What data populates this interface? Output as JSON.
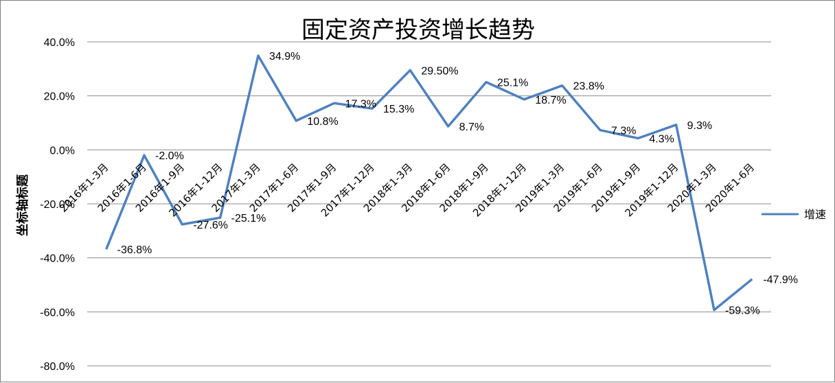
{
  "chart_data": {
    "type": "line",
    "title": "固定资产投资增长趋势",
    "ylabel": "坐标轴标题",
    "xlabel": "",
    "ylim": [
      -80,
      40
    ],
    "yticks": [
      40,
      20,
      0,
      -20,
      -40,
      -60,
      -80
    ],
    "ytick_labels": [
      "40.0%",
      "20.0%",
      "0.0%",
      "-20.0%",
      "-40.0%",
      "-60.0%",
      "-80.0%"
    ],
    "grid": true,
    "legend_position": "right",
    "categories": [
      "2016年1-3月",
      "2016年1-6月",
      "2016年1-9月",
      "2016年1-12月",
      "2017年1-3月",
      "2017年1-6月",
      "2017年1-9月",
      "2017年1-12月",
      "2018年1-3月",
      "2018年1-6月",
      "2018年1-9月",
      "2018年1-12月",
      "2019年1-3月",
      "2019年1-6月",
      "2019年1-9月",
      "2019年1-12月",
      "2020年1-3月",
      "2020年1-6月"
    ],
    "series": [
      {
        "name": "增速",
        "color": "#4f81bd",
        "values": [
          -36.8,
          -2.0,
          -27.6,
          -25.1,
          34.9,
          10.8,
          17.3,
          15.3,
          29.5,
          8.7,
          25.1,
          18.7,
          23.8,
          7.3,
          4.3,
          9.3,
          -59.3,
          -47.9
        ],
        "labels": [
          "-36.8%",
          "-2.0%",
          "-27.6%",
          "-25.1%",
          "34.9%",
          "10.8%",
          "17.3%",
          "15.3%",
          "29.50%",
          "8.7%",
          "25.1%",
          "18.7%",
          "23.8%",
          "7.3%",
          "4.3%",
          "9.3%",
          "-59.3%",
          "-47.9%"
        ]
      }
    ]
  }
}
